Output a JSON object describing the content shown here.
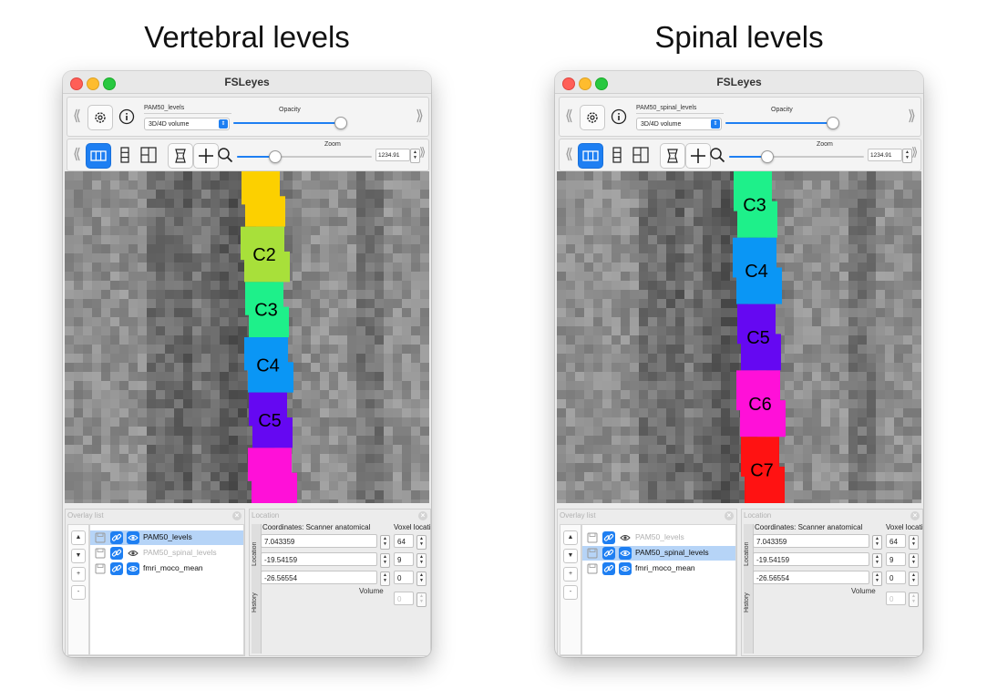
{
  "panels": [
    {
      "heading": "Vertebral levels",
      "window_title": "FSLeyes",
      "overlay_name": "PAM50_levels",
      "overlay_type": "3D/4D volume",
      "opacity_label": "Opacity",
      "opacity_value": 0.96,
      "zoom_label": "Zoom",
      "zoom_value": "1234.91",
      "zoom_slider": 0.28,
      "overlay_panel_title": "Overlay list",
      "location_panel_title": "Location",
      "overlays": [
        {
          "name": "PAM50_levels",
          "visible": true,
          "selected": true
        },
        {
          "name": "PAM50_spinal_levels",
          "visible": false,
          "selected": false
        },
        {
          "name": "fmri_moco_mean",
          "visible": true,
          "selected": false
        }
      ],
      "coords_header": "Coordinates: Scanner anatomical",
      "voxel_header": "Voxel location",
      "coords": [
        "7.043359",
        "-19.54159",
        "-26.56554"
      ],
      "voxels": [
        "64",
        "9",
        "0"
      ],
      "volume_label": "Volume",
      "volume_value": "0",
      "tab_location": "Location",
      "tab_history": "History",
      "segments": [
        {
          "label": "",
          "color": "#fcd000"
        },
        {
          "label": "C2",
          "color": "#a8e03a"
        },
        {
          "label": "C3",
          "color": "#1ef08a"
        },
        {
          "label": "C4",
          "color": "#0a96f5"
        },
        {
          "label": "C5",
          "color": "#6508f2"
        },
        {
          "label": "",
          "color": "#ff10d8"
        }
      ]
    },
    {
      "heading": "Spinal levels",
      "window_title": "FSLeyes",
      "overlay_name": "PAM50_spinal_levels",
      "overlay_type": "3D/4D volume",
      "opacity_label": "Opacity",
      "opacity_value": 0.96,
      "zoom_label": "Zoom",
      "zoom_value": "1234.91",
      "zoom_slider": 0.28,
      "overlay_panel_title": "Overlay list",
      "location_panel_title": "Location",
      "overlays": [
        {
          "name": "PAM50_levels",
          "visible": false,
          "selected": false
        },
        {
          "name": "PAM50_spinal_levels",
          "visible": true,
          "selected": true
        },
        {
          "name": "fmri_moco_mean",
          "visible": true,
          "selected": false
        }
      ],
      "coords_header": "Coordinates: Scanner anatomical",
      "voxel_header": "Voxel location",
      "coords": [
        "7.043359",
        "-19.54159",
        "-26.56554"
      ],
      "voxels": [
        "64",
        "9",
        "0"
      ],
      "volume_label": "Volume",
      "volume_value": "0",
      "tab_location": "Location",
      "tab_history": "History",
      "segments": [
        {
          "label": "C3",
          "color": "#1ef08a"
        },
        {
          "label": "C4",
          "color": "#0a96f5"
        },
        {
          "label": "C5",
          "color": "#6508f2"
        },
        {
          "label": "C6",
          "color": "#ff10d8"
        },
        {
          "label": "C7",
          "color": "#ff1212"
        }
      ]
    }
  ]
}
